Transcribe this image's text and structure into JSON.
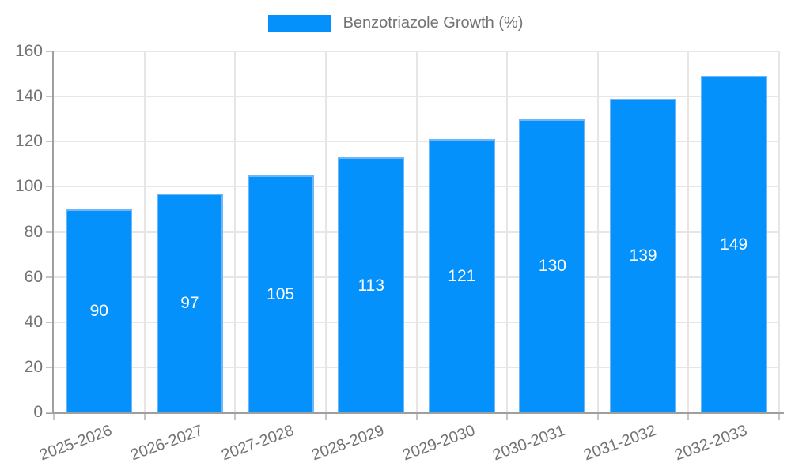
{
  "legend": {
    "label": "Benzotriazole Growth (%)"
  },
  "chart_data": {
    "type": "bar",
    "title": "",
    "categories": [
      "2025-2026",
      "2026-2027",
      "2027-2028",
      "2028-2029",
      "2029-2030",
      "2030-2031",
      "2031-2032",
      "2032-2033"
    ],
    "values": [
      90,
      97,
      105,
      113,
      121,
      130,
      139,
      149
    ],
    "series": [
      {
        "name": "Benzotriazole Growth (%)",
        "values": [
          90,
          97,
          105,
          113,
          121,
          130,
          139,
          149
        ]
      }
    ],
    "xlabel": "",
    "ylabel": "",
    "ylim": [
      0,
      160
    ],
    "ytick_step": 20,
    "grid": true,
    "legend_position": "top",
    "data_labels": true,
    "colors": {
      "bar": "#0591fb",
      "bar_border": "#6fb6f8",
      "data_label": "#ffffff",
      "axis_text": "#737373",
      "grid": "#e6e6e6",
      "axis_line": "#9f9f9f",
      "tick": "#c6c6c6"
    }
  }
}
